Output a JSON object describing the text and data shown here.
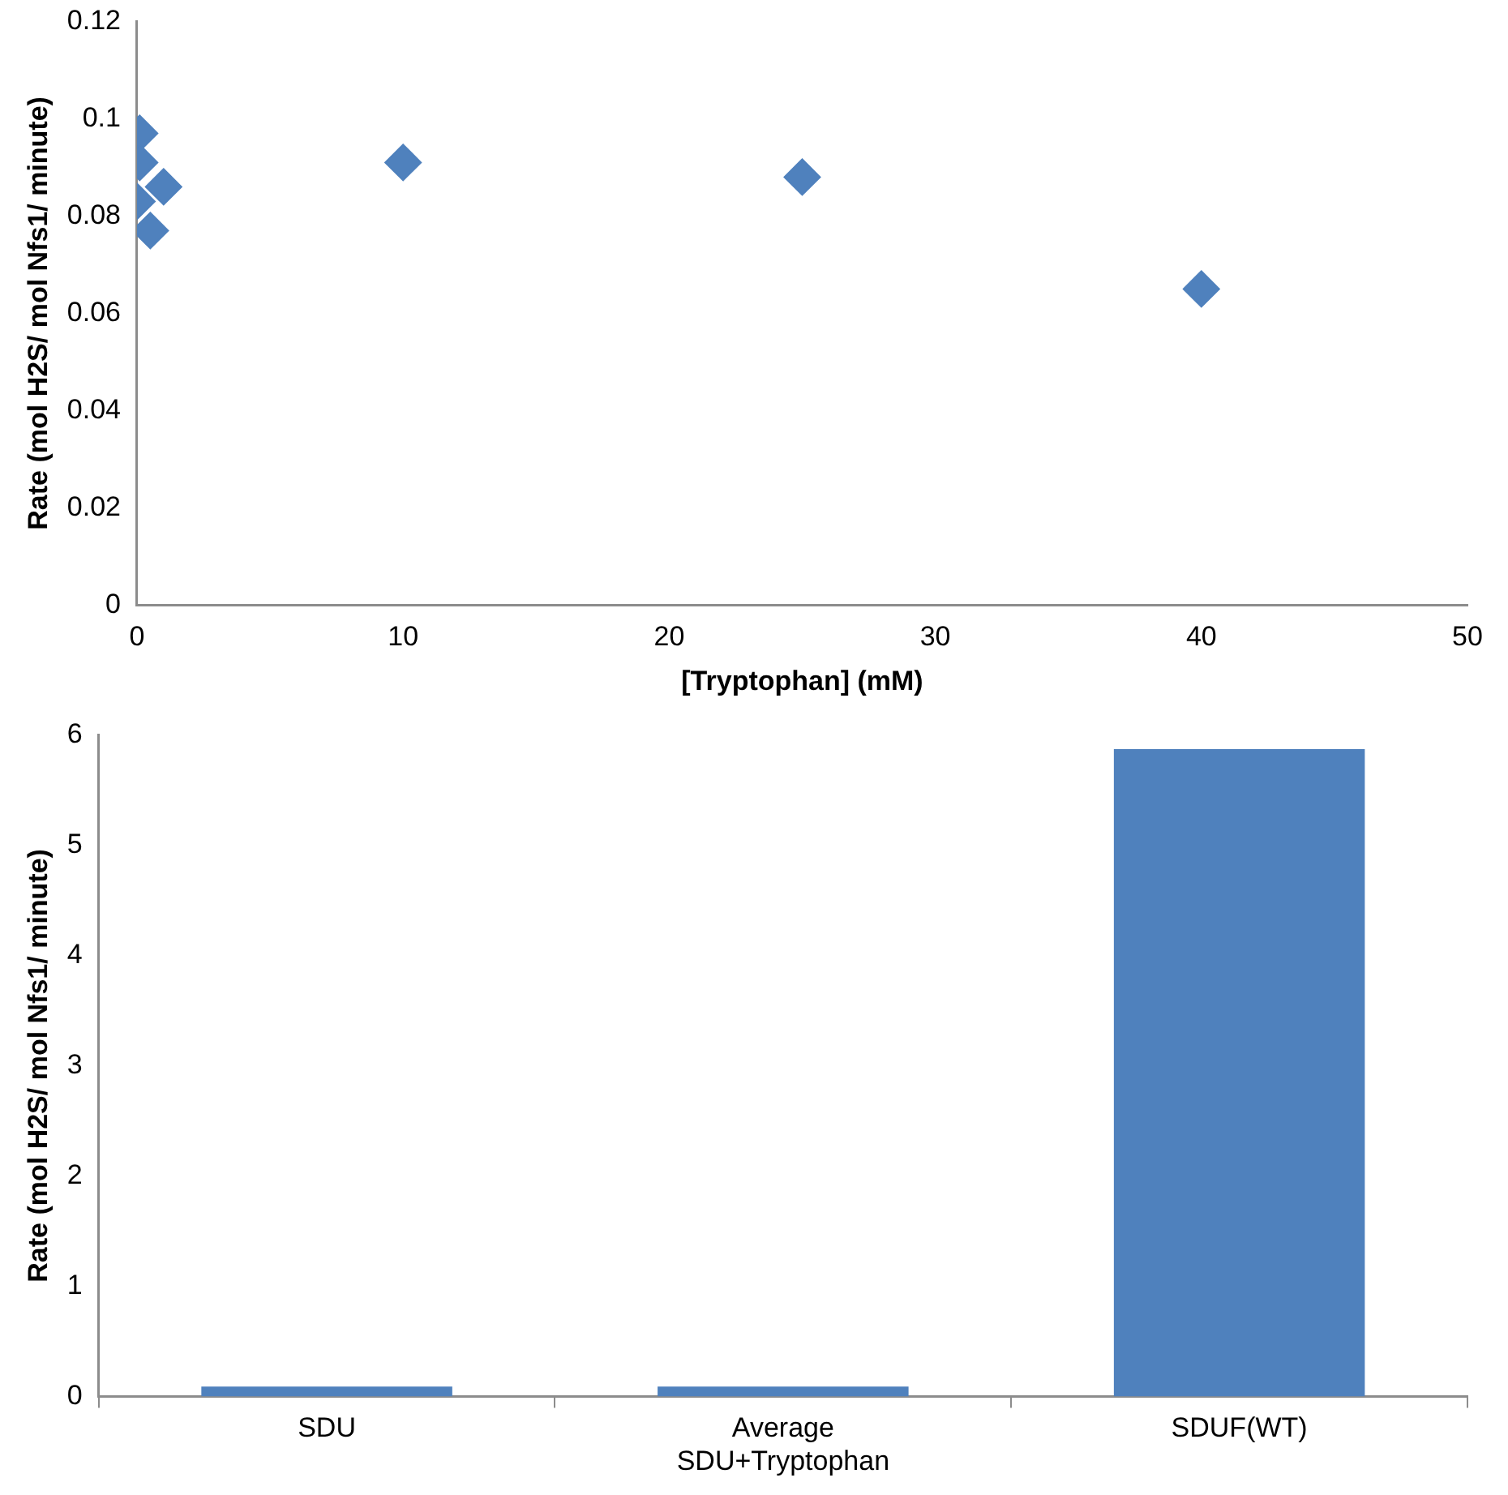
{
  "chart_data": [
    {
      "type": "scatter",
      "xlabel": "[Tryptophan] (mM)",
      "ylabel": "Rate (mol H2S/ mol Nfs1/ minute)",
      "marker": "diamond",
      "grid": false,
      "legend": false,
      "series": [
        {
          "color": "#4f81bd",
          "x": [
            0.1,
            0.1,
            0,
            0.5,
            1,
            10,
            25,
            40
          ],
          "values": [
            0.097,
            0.091,
            0.083,
            0.077,
            0.086,
            0.091,
            0.088,
            0.065
          ]
        }
      ],
      "xlim": [
        0,
        50
      ],
      "xticks": [
        0,
        10,
        20,
        30,
        40,
        50
      ],
      "ylim": [
        0,
        0.12
      ],
      "yticks": [
        0,
        0.02,
        0.04,
        0.06,
        0.08,
        0.1,
        0.12
      ]
    },
    {
      "type": "bar",
      "ylabel": "Rate (mol H2S/ mol Nfs1/ minute)",
      "grid": false,
      "legend": false,
      "categories": [
        "SDU",
        "Average\nSDU+Tryptophan",
        "SDUF(WT)"
      ],
      "series": [
        {
          "color": "#4f81bd",
          "values": [
            0.09,
            0.09,
            5.87
          ]
        }
      ],
      "ylim": [
        0,
        6
      ],
      "yticks": [
        0,
        1,
        2,
        3,
        4,
        5,
        6
      ]
    }
  ]
}
